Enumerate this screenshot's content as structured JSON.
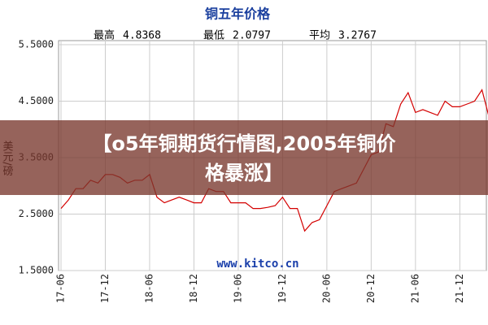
{
  "chart_data": {
    "type": "line",
    "title": "铜五年价格",
    "stats": [
      {
        "label": "最高",
        "value": 4.8368
      },
      {
        "label": "最低",
        "value": 2.0797
      },
      {
        "label": "平均",
        "value": 3.2767
      }
    ],
    "y_label": "美元/磅",
    "watermark": "www.kitco.cn",
    "categories": [
      "17-06",
      null,
      null,
      null,
      null,
      null,
      "17-12",
      null,
      null,
      null,
      null,
      null,
      "18-06",
      null,
      null,
      null,
      null,
      null,
      "18-12",
      null,
      null,
      null,
      null,
      null,
      "19-06",
      null,
      null,
      null,
      null,
      null,
      "19-12",
      null,
      null,
      null,
      null,
      null,
      "20-06",
      null,
      null,
      null,
      null,
      null,
      "20-12",
      null,
      null,
      null,
      null,
      null,
      "21-06",
      null,
      null,
      null,
      null,
      null,
      "21-12",
      null,
      null,
      null,
      null
    ],
    "series": [
      {
        "color": "#d40000",
        "values": [
          2.6,
          2.75,
          2.95,
          2.95,
          3.1,
          3.05,
          3.2,
          3.2,
          3.15,
          3.05,
          3.1,
          3.1,
          3.2,
          2.8,
          2.7,
          2.75,
          2.8,
          2.75,
          2.7,
          2.7,
          2.95,
          2.9,
          2.9,
          2.7,
          2.7,
          2.7,
          2.6,
          2.6,
          2.62,
          2.65,
          2.8,
          2.6,
          2.6,
          2.2,
          2.35,
          2.4,
          2.65,
          2.9,
          2.95,
          3.0,
          3.05,
          3.3,
          3.55,
          3.6,
          4.1,
          4.05,
          4.45,
          4.65,
          4.3,
          4.35,
          4.3,
          4.25,
          4.5,
          4.4,
          4.4,
          4.45,
          4.5,
          4.7,
          4.2
        ]
      }
    ],
    "ylim": [
      1.5,
      5.5
    ],
    "yticks": [
      {
        "value": 1.5,
        "label": "1.5000"
      },
      {
        "value": 2.5,
        "label": "2.5000"
      },
      {
        "value": 3.5,
        "label": "3.5000"
      },
      {
        "value": 4.5,
        "label": "4.5000"
      },
      {
        "value": 5.5,
        "label": "5.5000"
      }
    ],
    "grid": true
  },
  "banner": {
    "lines": [
      "【o5年铜期货行情图,2005年铜价",
      "格暴涨】"
    ]
  }
}
